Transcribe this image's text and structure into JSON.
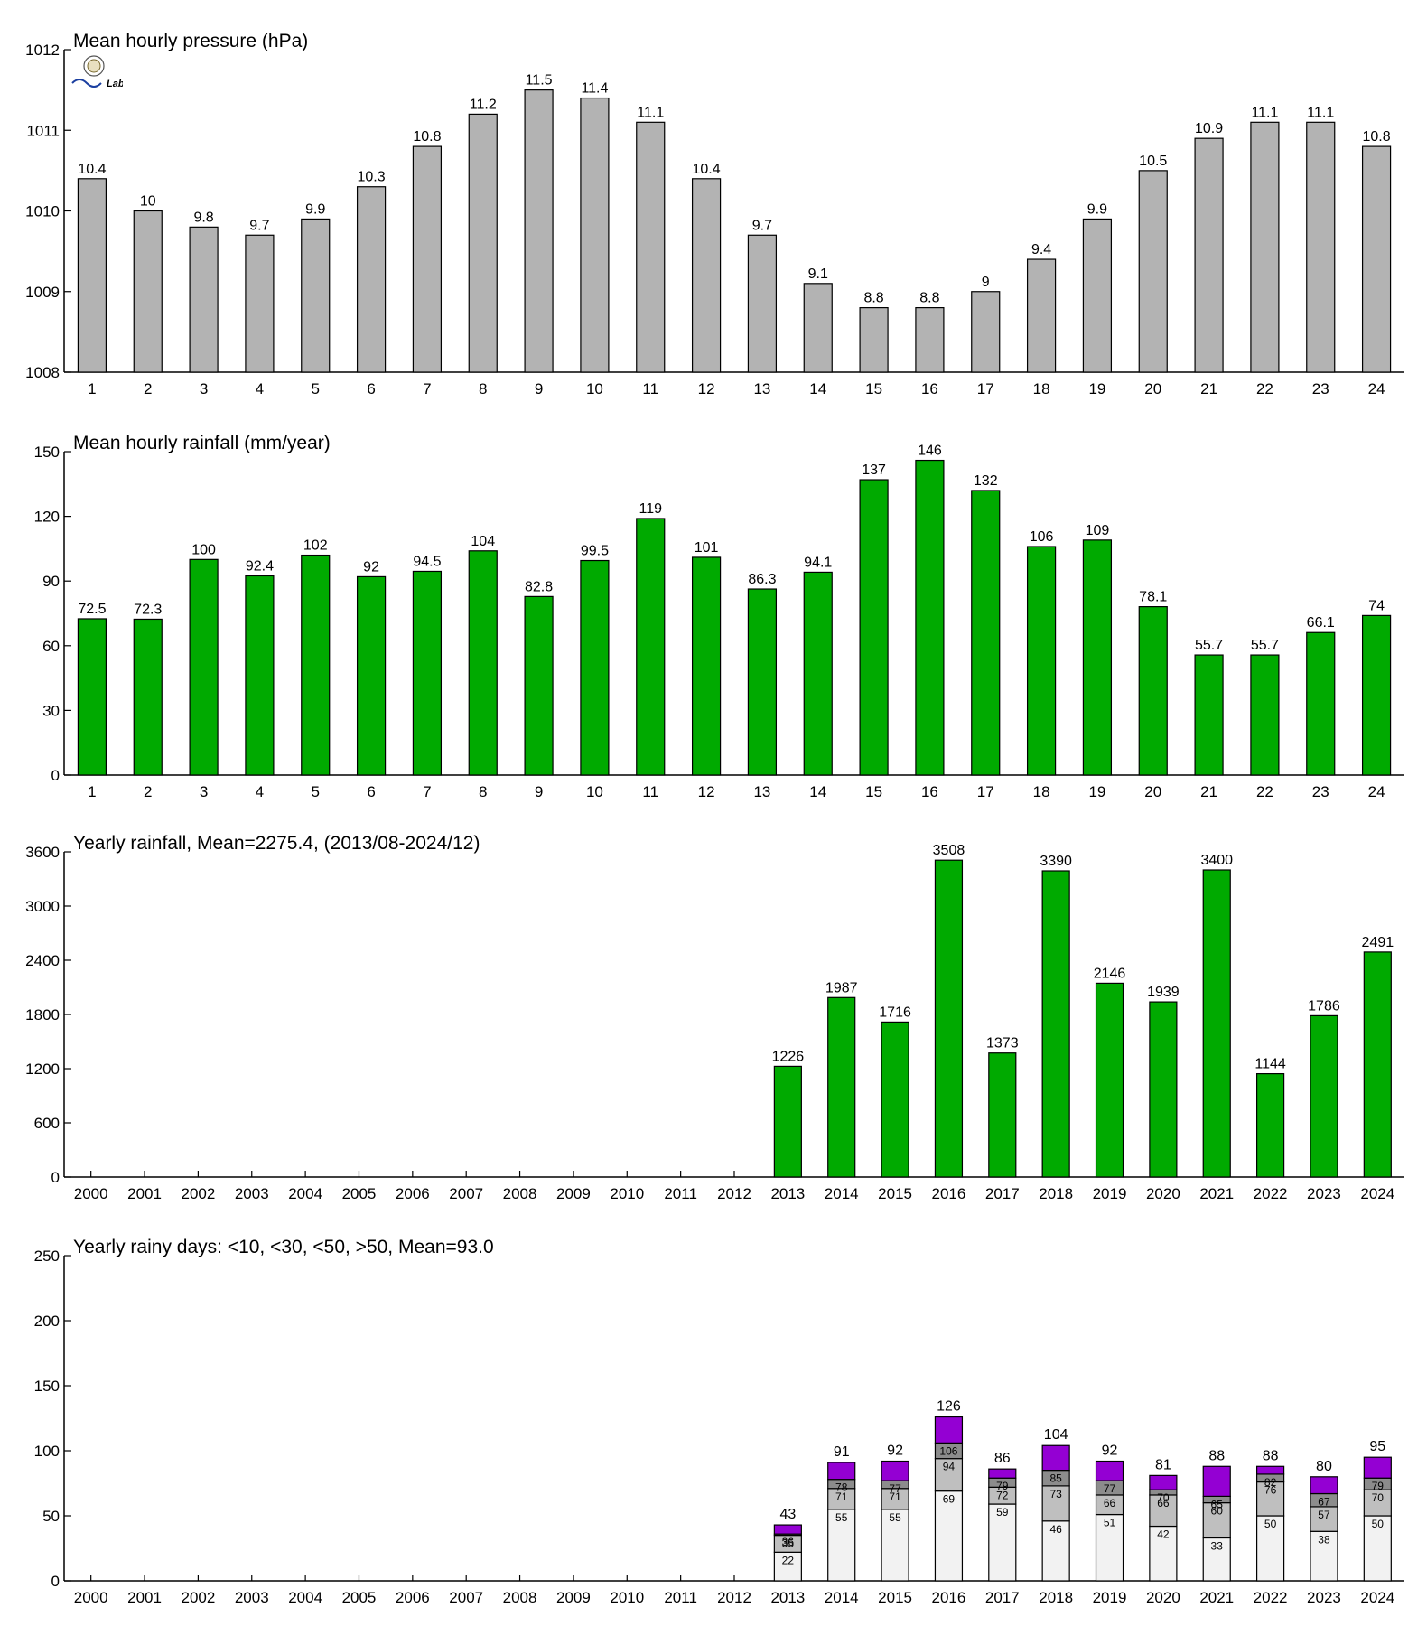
{
  "logo": {
    "text": "Lab",
    "style_colors": [
      "#2a7a2a",
      "#1b3fa0",
      "#d18a00"
    ]
  },
  "colors": {
    "pressure_bar": "#b3b3b3",
    "rain_bar": "#00aa00",
    "days_lt10": "#f2f2f2",
    "days_lt30": "#bfbfbf",
    "days_lt50": "#8c8c8c",
    "days_gt50": "#9400d3"
  },
  "chart_data": [
    {
      "type": "bar",
      "title": "Mean hourly pressure (hPa)",
      "categories": [
        "1",
        "2",
        "3",
        "4",
        "5",
        "6",
        "7",
        "8",
        "9",
        "10",
        "11",
        "12",
        "13",
        "14",
        "15",
        "16",
        "17",
        "18",
        "19",
        "20",
        "21",
        "22",
        "23",
        "24"
      ],
      "values": [
        1010.4,
        1010.0,
        1009.8,
        1009.7,
        1009.9,
        1010.3,
        1010.8,
        1011.2,
        1011.5,
        1011.4,
        1011.1,
        1010.4,
        1009.7,
        1009.1,
        1008.8,
        1008.8,
        1009.0,
        1009.4,
        1009.9,
        1010.5,
        1010.9,
        1011.1,
        1011.1,
        1010.8
      ],
      "data_labels": [
        "10.4",
        "10",
        "9.8",
        "9.7",
        "9.9",
        "10.3",
        "10.8",
        "11.2",
        "11.5",
        "11.4",
        "11.1",
        "10.4",
        "9.7",
        "9.1",
        "8.8",
        "8.8",
        "9",
        "9.4",
        "9.9",
        "10.5",
        "10.9",
        "11.1",
        "11.1",
        "10.8"
      ],
      "ylim": [
        1008,
        1012
      ],
      "yticks": [
        1008,
        1009,
        1010,
        1011,
        1012
      ],
      "grid": false
    },
    {
      "type": "bar",
      "title": "Mean hourly rainfall (mm/year)",
      "categories": [
        "1",
        "2",
        "3",
        "4",
        "5",
        "6",
        "7",
        "8",
        "9",
        "10",
        "11",
        "12",
        "13",
        "14",
        "15",
        "16",
        "17",
        "18",
        "19",
        "20",
        "21",
        "22",
        "23",
        "24"
      ],
      "values": [
        72.5,
        72.3,
        100,
        92.4,
        102,
        92,
        94.5,
        104,
        82.8,
        99.5,
        119,
        101,
        86.3,
        94.1,
        137,
        146,
        132,
        106,
        109,
        78.1,
        55.7,
        55.7,
        66.1,
        74
      ],
      "data_labels": [
        "72.5",
        "72.3",
        "100",
        "92.4",
        "102",
        "92",
        "94.5",
        "104",
        "82.8",
        "99.5",
        "119",
        "101",
        "86.3",
        "94.1",
        "137",
        "146",
        "132",
        "106",
        "109",
        "78.1",
        "55.7",
        "55.7",
        "66.1",
        "74"
      ],
      "ylim": [
        0,
        150
      ],
      "yticks": [
        0,
        30,
        60,
        90,
        120,
        150
      ],
      "grid": false
    },
    {
      "type": "bar",
      "title": "Yearly rainfall, Mean=2275.4, (2013/08-2024/12)",
      "categories": [
        "2000",
        "2001",
        "2002",
        "2003",
        "2004",
        "2005",
        "2006",
        "2007",
        "2008",
        "2009",
        "2010",
        "2011",
        "2012",
        "2013",
        "2014",
        "2015",
        "2016",
        "2017",
        "2018",
        "2019",
        "2020",
        "2021",
        "2022",
        "2023",
        "2024"
      ],
      "values": [
        null,
        null,
        null,
        null,
        null,
        null,
        null,
        null,
        null,
        null,
        null,
        null,
        null,
        1226,
        1987,
        1716,
        3508,
        1373,
        3390,
        2146,
        1939,
        3400,
        1144,
        1786,
        2491
      ],
      "data_labels": [
        "",
        "",
        "",
        "",
        "",
        "",
        "",
        "",
        "",
        "",
        "",
        "",
        "",
        "1226",
        "1987",
        "1716",
        "3508",
        "1373",
        "3390",
        "2146",
        "1939",
        "3400",
        "1144",
        "1786",
        "2491"
      ],
      "ylim": [
        0,
        3600
      ],
      "yticks": [
        0,
        600,
        1200,
        1800,
        2400,
        3000,
        3600
      ],
      "grid": false
    },
    {
      "type": "bar",
      "stacked": true,
      "title": "Yearly rainy days: <10, <30, <50, >50, Mean=93.0",
      "categories": [
        "2000",
        "2001",
        "2002",
        "2003",
        "2004",
        "2005",
        "2006",
        "2007",
        "2008",
        "2009",
        "2010",
        "2011",
        "2012",
        "2013",
        "2014",
        "2015",
        "2016",
        "2017",
        "2018",
        "2019",
        "2020",
        "2021",
        "2022",
        "2023",
        "2024"
      ],
      "cumulative": {
        "lt10": [
          null,
          null,
          null,
          null,
          null,
          null,
          null,
          null,
          null,
          null,
          null,
          null,
          null,
          22,
          55,
          55,
          69,
          59,
          46,
          51,
          42,
          33,
          50,
          38,
          50
        ],
        "lt30": [
          null,
          null,
          null,
          null,
          null,
          null,
          null,
          null,
          null,
          null,
          null,
          null,
          null,
          35,
          71,
          71,
          94,
          72,
          73,
          66,
          66,
          60,
          76,
          57,
          70
        ],
        "lt50": [
          null,
          null,
          null,
          null,
          null,
          null,
          null,
          null,
          null,
          null,
          null,
          null,
          null,
          36,
          78,
          77,
          106,
          79,
          85,
          77,
          70,
          65,
          82,
          67,
          79
        ],
        "total": [
          null,
          null,
          null,
          null,
          null,
          null,
          null,
          null,
          null,
          null,
          null,
          null,
          null,
          43,
          91,
          92,
          126,
          86,
          104,
          92,
          81,
          88,
          88,
          80,
          95
        ]
      },
      "ylim": [
        0,
        250
      ],
      "yticks": [
        0,
        50,
        100,
        150,
        200,
        250
      ],
      "grid": false
    }
  ]
}
